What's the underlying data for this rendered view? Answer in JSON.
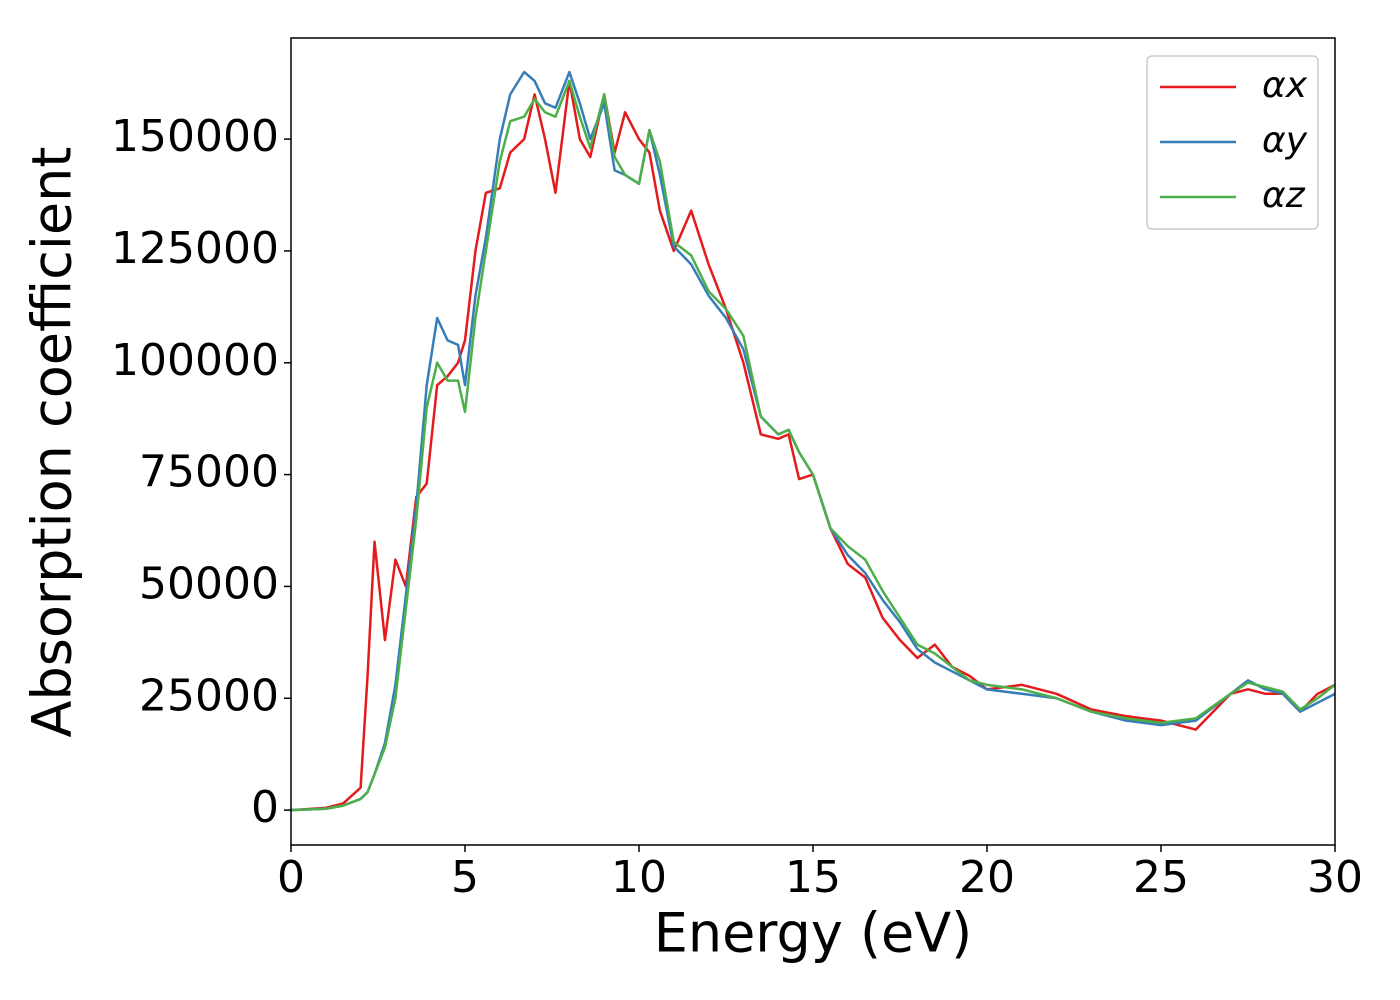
{
  "chart_data": {
    "type": "line",
    "xlabel": "Energy (eV)",
    "ylabel": "Absorption coefficient",
    "x": [
      0,
      1,
      1.5,
      2,
      2.2,
      2.4,
      2.7,
      3,
      3.3,
      3.6,
      3.9,
      4.2,
      4.5,
      4.8,
      5,
      5.3,
      5.6,
      6,
      6.3,
      6.7,
      7,
      7.3,
      7.6,
      8,
      8.3,
      8.6,
      9,
      9.3,
      9.6,
      10,
      10.3,
      10.6,
      11,
      11.5,
      12,
      12.5,
      13,
      13.5,
      14,
      14.3,
      14.6,
      15,
      15.5,
      16,
      16.5,
      17,
      17.5,
      18,
      18.5,
      19,
      19.5,
      20,
      21,
      22,
      23,
      24,
      25,
      26,
      27,
      27.5,
      28,
      28.5,
      29,
      29.5,
      30
    ],
    "series": [
      {
        "name": "αx",
        "color": "#e41a1c",
        "values": [
          0,
          500,
          1500,
          5000,
          30000,
          60000,
          38000,
          56000,
          50000,
          70000,
          73000,
          95000,
          97000,
          100000,
          105000,
          125000,
          138000,
          139000,
          147000,
          150000,
          160000,
          150000,
          138000,
          163000,
          150000,
          146000,
          160000,
          147000,
          156000,
          150000,
          147000,
          134000,
          125000,
          134000,
          122000,
          112000,
          100000,
          84000,
          83000,
          84000,
          74000,
          75000,
          63000,
          55000,
          52000,
          43000,
          38000,
          34000,
          37000,
          32000,
          30000,
          27000,
          28000,
          26000,
          22500,
          21000,
          20000,
          18000,
          26000,
          27000,
          26000,
          26000,
          22000,
          26000,
          28000
        ]
      },
      {
        "name": "αy",
        "color": "#377eb8",
        "values": [
          0,
          300,
          1000,
          2500,
          4000,
          8000,
          15000,
          28000,
          48000,
          68000,
          95000,
          110000,
          105000,
          104000,
          95000,
          115000,
          128000,
          150000,
          160000,
          165000,
          163000,
          158000,
          157000,
          165000,
          158000,
          150000,
          158000,
          143000,
          142000,
          140000,
          152000,
          142000,
          126000,
          122000,
          115000,
          110000,
          103000,
          88000,
          84000,
          85000,
          80000,
          75000,
          63000,
          57000,
          53000,
          47000,
          42000,
          36000,
          33000,
          31000,
          29000,
          27000,
          26000,
          25000,
          22000,
          20000,
          19000,
          20000,
          26000,
          29000,
          27000,
          26000,
          22000,
          24000,
          26000
        ]
      },
      {
        "name": "αz",
        "color": "#4daf4a",
        "values": [
          0,
          300,
          1000,
          2500,
          4000,
          8000,
          14000,
          25000,
          45000,
          65000,
          90000,
          100000,
          96000,
          96000,
          89000,
          110000,
          125000,
          145000,
          154000,
          155000,
          159000,
          156000,
          155000,
          163000,
          155000,
          148000,
          160000,
          146000,
          142000,
          140000,
          152000,
          145000,
          127000,
          124000,
          116000,
          112000,
          106000,
          88000,
          84000,
          85000,
          80000,
          75000,
          63000,
          59000,
          56000,
          49000,
          43000,
          37000,
          35000,
          32000,
          29000,
          28000,
          27000,
          25000,
          22000,
          20500,
          19500,
          20500,
          26000,
          28500,
          27500,
          26500,
          22500,
          25000,
          28000
        ]
      }
    ],
    "xlim": [
      0,
      30
    ],
    "xticks": [
      0,
      5,
      10,
      15,
      20,
      25,
      30
    ],
    "ylim": [
      -7800,
      172600
    ],
    "yticks": [
      0,
      25000,
      50000,
      75000,
      100000,
      125000,
      150000
    ],
    "legend": "upper right"
  }
}
